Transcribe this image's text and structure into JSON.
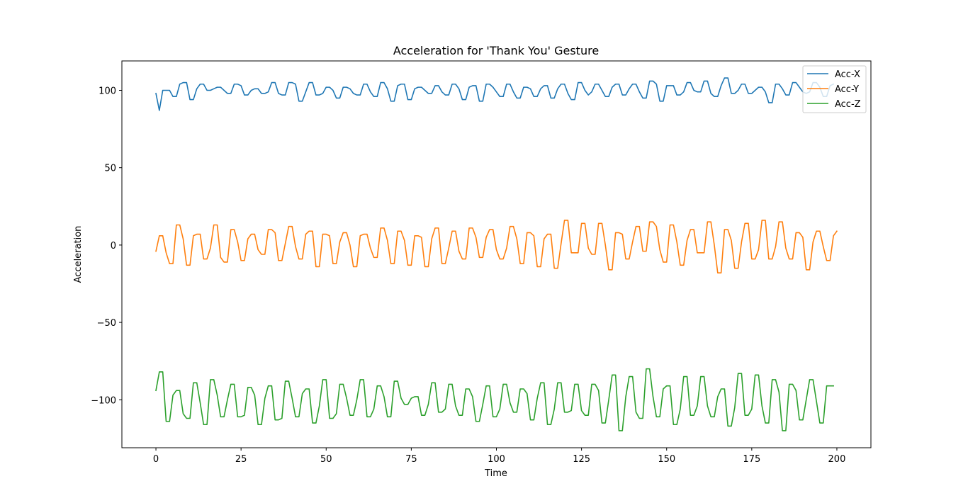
{
  "chart_data": {
    "type": "line",
    "title": "Acceleration for 'Thank You' Gesture",
    "xlabel": "Time",
    "ylabel": "Acceleration",
    "xlim": [
      -10,
      210
    ],
    "ylim": [
      -131,
      119
    ],
    "xticks": [
      0,
      25,
      50,
      75,
      100,
      125,
      150,
      175,
      200
    ],
    "yticks": [
      -100,
      -50,
      0,
      50,
      100
    ],
    "ytick_labels": [
      "−100",
      "−50",
      "0",
      "50",
      "100"
    ],
    "grid": false,
    "legend_position": "top-right",
    "series": [
      {
        "name": "Acc-X",
        "color": "#1f77b4",
        "values": [
          98,
          87,
          100,
          100,
          100,
          96,
          96,
          104,
          105,
          105,
          94,
          94,
          101,
          104,
          104,
          100,
          100,
          101,
          102,
          102,
          100,
          98,
          98,
          104,
          104,
          103,
          97,
          97,
          100,
          101,
          101,
          98,
          98,
          99,
          105,
          105,
          98,
          97,
          97,
          105,
          105,
          104,
          93,
          93,
          99,
          105,
          105,
          97,
          97,
          98,
          102,
          102,
          100,
          95,
          95,
          102,
          102,
          101,
          98,
          97,
          97,
          104,
          104,
          99,
          96,
          96,
          105,
          105,
          101,
          93,
          93,
          103,
          104,
          104,
          94,
          94,
          101,
          102,
          102,
          100,
          98,
          98,
          103,
          103,
          99,
          97,
          97,
          104,
          104,
          101,
          94,
          94,
          102,
          103,
          103,
          93,
          93,
          104,
          104,
          102,
          99,
          96,
          96,
          104,
          104,
          99,
          95,
          95,
          102,
          102,
          101,
          96,
          96,
          101,
          103,
          103,
          95,
          95,
          101,
          104,
          104,
          98,
          94,
          94,
          105,
          105,
          100,
          97,
          99,
          104,
          104,
          100,
          96,
          96,
          102,
          104,
          104,
          97,
          97,
          101,
          104,
          104,
          99,
          95,
          95,
          106,
          106,
          104,
          93,
          93,
          103,
          103,
          103,
          97,
          97,
          99,
          105,
          105,
          100,
          99,
          99,
          106,
          106,
          98,
          96,
          96,
          103,
          108,
          108,
          98,
          98,
          100,
          104,
          104,
          98,
          98,
          100,
          102,
          102,
          99,
          92,
          92,
          104,
          104,
          101,
          97,
          97,
          105,
          105,
          102,
          99,
          98,
          99,
          105,
          105,
          102,
          96,
          96,
          103,
          104
        ]
      },
      {
        "name": "Acc-Y",
        "color": "#ff7f0e",
        "values": [
          -4,
          6,
          6,
          -5,
          -12,
          -12,
          13,
          13,
          4,
          -13,
          -13,
          6,
          7,
          7,
          -9,
          -9,
          -2,
          13,
          13,
          -8,
          -11,
          -11,
          10,
          10,
          2,
          -10,
          -10,
          4,
          7,
          7,
          -3,
          -6,
          -6,
          10,
          10,
          8,
          -10,
          -10,
          1,
          12,
          12,
          -1,
          -9,
          -9,
          7,
          9,
          9,
          -14,
          -14,
          7,
          7,
          6,
          -12,
          -12,
          2,
          8,
          8,
          0,
          -14,
          -14,
          6,
          7,
          7,
          -2,
          -8,
          -8,
          11,
          11,
          3,
          -12,
          -12,
          9,
          9,
          3,
          -13,
          -13,
          6,
          6,
          5,
          -14,
          -14,
          4,
          11,
          11,
          -12,
          -12,
          -2,
          9,
          9,
          -4,
          -9,
          -9,
          11,
          11,
          5,
          -8,
          -8,
          5,
          10,
          10,
          -3,
          -9,
          -9,
          -2,
          12,
          12,
          4,
          -12,
          -12,
          8,
          8,
          6,
          -14,
          -14,
          4,
          7,
          7,
          -15,
          -15,
          1,
          16,
          16,
          -5,
          -5,
          -5,
          14,
          14,
          -2,
          -6,
          -6,
          14,
          14,
          0,
          -16,
          -16,
          8,
          8,
          7,
          -9,
          -9,
          2,
          12,
          12,
          -4,
          -4,
          15,
          15,
          12,
          -3,
          -11,
          -11,
          13,
          13,
          2,
          -13,
          -13,
          3,
          10,
          10,
          -5,
          -5,
          -5,
          15,
          15,
          0,
          -18,
          -18,
          10,
          10,
          3,
          -15,
          -15,
          2,
          14,
          14,
          -9,
          -9,
          -3,
          16,
          16,
          -9,
          -9,
          -1,
          15,
          15,
          -2,
          -9,
          -9,
          8,
          8,
          5,
          -16,
          -16,
          2,
          9,
          9,
          -1,
          -10,
          -10,
          6,
          9
        ]
      },
      {
        "name": "Acc-Z",
        "color": "#2ca02c",
        "values": [
          -94,
          -82,
          -82,
          -114,
          -114,
          -97,
          -94,
          -94,
          -109,
          -112,
          -112,
          -89,
          -89,
          -102,
          -116,
          -116,
          -87,
          -87,
          -97,
          -111,
          -111,
          -100,
          -90,
          -90,
          -111,
          -111,
          -110,
          -92,
          -92,
          -97,
          -116,
          -116,
          -99,
          -91,
          -91,
          -113,
          -113,
          -112,
          -88,
          -88,
          -99,
          -111,
          -111,
          -96,
          -93,
          -93,
          -115,
          -115,
          -104,
          -87,
          -87,
          -112,
          -112,
          -109,
          -90,
          -90,
          -99,
          -110,
          -110,
          -100,
          -87,
          -87,
          -111,
          -111,
          -106,
          -91,
          -91,
          -98,
          -111,
          -111,
          -88,
          -88,
          -99,
          -103,
          -103,
          -99,
          -98,
          -98,
          -110,
          -110,
          -103,
          -89,
          -89,
          -108,
          -108,
          -106,
          -90,
          -90,
          -104,
          -110,
          -110,
          -93,
          -93,
          -98,
          -114,
          -114,
          -103,
          -91,
          -91,
          -111,
          -111,
          -106,
          -90,
          -90,
          -102,
          -108,
          -108,
          -93,
          -93,
          -96,
          -113,
          -113,
          -99,
          -89,
          -89,
          -116,
          -116,
          -106,
          -89,
          -89,
          -108,
          -108,
          -107,
          -90,
          -90,
          -107,
          -110,
          -110,
          -90,
          -90,
          -94,
          -115,
          -115,
          -100,
          -84,
          -84,
          -120,
          -120,
          -98,
          -85,
          -85,
          -108,
          -112,
          -112,
          -80,
          -80,
          -98,
          -111,
          -111,
          -93,
          -91,
          -91,
          -116,
          -116,
          -106,
          -85,
          -85,
          -110,
          -110,
          -104,
          -85,
          -85,
          -104,
          -111,
          -111,
          -98,
          -93,
          -93,
          -117,
          -117,
          -105,
          -83,
          -83,
          -110,
          -110,
          -106,
          -84,
          -84,
          -104,
          -115,
          -115,
          -87,
          -87,
          -95,
          -120,
          -120,
          -90,
          -90,
          -94,
          -113,
          -113,
          -100,
          -87,
          -87,
          -101,
          -115,
          -115,
          -91,
          -91,
          -91
        ]
      }
    ]
  }
}
